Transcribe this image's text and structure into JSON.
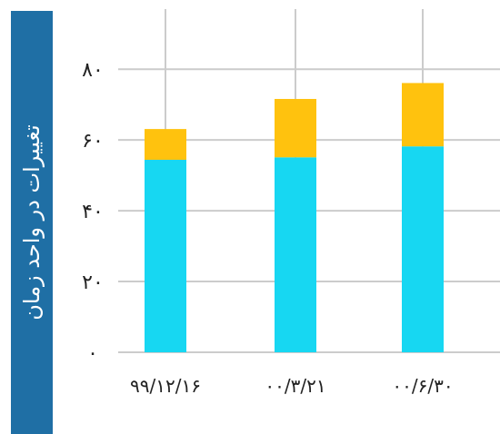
{
  "chart_data": {
    "type": "bar",
    "stacked": true,
    "ylabel": "تغییرات در واحد زمان",
    "categories": [
      "۹۹/۱۲/۱۶",
      "۰۰/۳/۲۱",
      "۰۰/۶/۳۰"
    ],
    "series": [
      {
        "values": [
          54.4,
          55.1,
          58.2
        ],
        "color": "#17d7f2"
      },
      {
        "values": [
          8.7,
          16.5,
          17.9
        ],
        "color": "#ffc20e"
      }
    ],
    "ylim": [
      0,
      97
    ],
    "yticks": [
      0,
      20,
      40,
      60,
      80
    ],
    "ytick_labels": [
      "۰",
      "۲۰",
      "۴۰",
      "۶۰",
      "۸۰"
    ],
    "grid": true,
    "colors": {
      "panel": "#1f6fa5",
      "grid": "#cccccc"
    }
  }
}
